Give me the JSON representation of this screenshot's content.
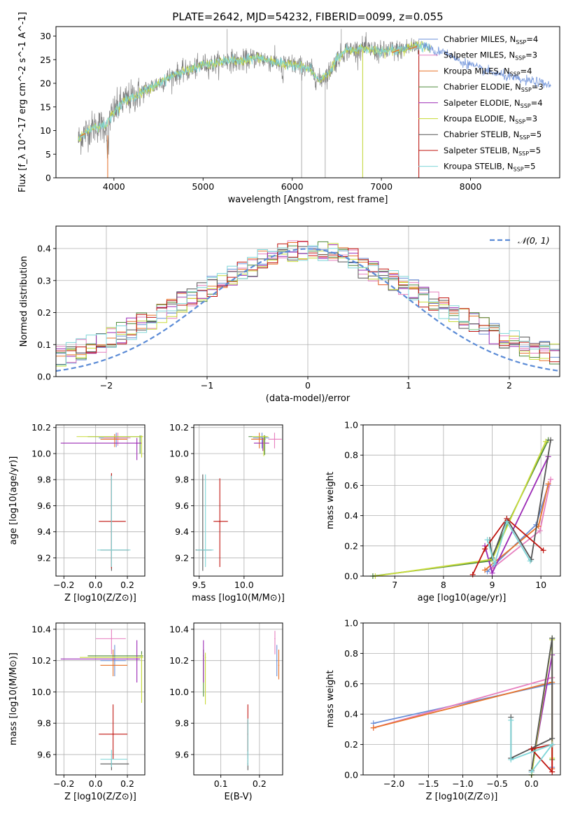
{
  "figure_title": "PLATE=2642, MJD=54232, FIBERID=0099, z=0.055",
  "colors": [
    "#6a8fd8",
    "#e67fbf",
    "#e8732a",
    "#4f8a3c",
    "#9b29b5",
    "#c9dc3a",
    "#555555",
    "#c0140f",
    "#7fd6d8"
  ],
  "chart_data": [
    {
      "id": "spectrum",
      "type": "line",
      "title": "PLATE=2642, MJD=54232, FIBERID=0099, z=0.055",
      "xlabel": "wavelength [Angstrom, rest frame]",
      "ylabel": "Flux [f_λ 10^-17 erg cm^-2 s^-1 A^-1]",
      "xlim": [
        3350,
        9000
      ],
      "ylim": [
        0,
        32
      ],
      "xticks": [
        4000,
        5000,
        6000,
        7000,
        8000
      ],
      "yticks": [
        0,
        5,
        10,
        15,
        20,
        25,
        30
      ],
      "grid": false,
      "legend_position": "upper-right",
      "legend": [
        {
          "model": "Chabrier MILES",
          "nssp": "4"
        },
        {
          "model": "Salpeter MILES",
          "nssp": "3"
        },
        {
          "model": "Kroupa MILES",
          "nssp": "4"
        },
        {
          "model": "Chabrier ELODIE",
          "nssp": "3"
        },
        {
          "model": "Salpeter ELODIE",
          "nssp": "4"
        },
        {
          "model": "Kroupa ELODIE",
          "nssp": "3"
        },
        {
          "model": "Chabrier STELIB",
          "nssp": "5"
        },
        {
          "model": "Salpeter STELIB",
          "nssp": "5"
        },
        {
          "model": "Kroupa STELIB",
          "nssp": "5"
        }
      ],
      "data_continuum": {
        "x": [
          3600,
          3700,
          3800,
          3900,
          4000,
          4100,
          4200,
          4300,
          4400,
          4500,
          4600,
          4700,
          4800,
          4900,
          5000,
          5100,
          5200,
          5300,
          5400,
          5500,
          5600,
          5700,
          5800,
          5900,
          6000,
          6100,
          6200,
          6300,
          6400,
          6500,
          6600,
          6700,
          6800,
          6900,
          7000,
          7100,
          7200,
          7300,
          7400,
          7500,
          7600,
          7700,
          7800,
          7900,
          8000,
          8100,
          8200,
          8300,
          8400,
          8500,
          8600,
          8700,
          8800,
          8900,
          9000
        ],
        "y": [
          8,
          10,
          11,
          11,
          14,
          16,
          17,
          18,
          19,
          20,
          21,
          22,
          22.5,
          23,
          24,
          24,
          24.5,
          25,
          24.5,
          25,
          25.5,
          25,
          24.5,
          24,
          24,
          23.5,
          23,
          20.5,
          22,
          25,
          27,
          27,
          27.5,
          27,
          26.5,
          27,
          27,
          27.5,
          28,
          28,
          26.5,
          27,
          25.5,
          24.5,
          24,
          23,
          22.5,
          22,
          21.5,
          21,
          20.5,
          20.5,
          20,
          19.5,
          19
        ]
      }
    },
    {
      "id": "residual_histogram",
      "type": "histogram",
      "xlabel": "(data-model)/error",
      "ylabel": "Normed distribution",
      "xlim": [
        -2.5,
        2.5
      ],
      "ylim": [
        0,
        0.47
      ],
      "xticks": [
        -2,
        -1,
        0,
        1,
        2
      ],
      "yticks": [
        0.0,
        0.1,
        0.2,
        0.3,
        0.4
      ],
      "grid": true,
      "legend_position": "upper-right",
      "legend_label": "𝒩(0, 1)",
      "bin_width": 0.1
    },
    {
      "id": "age_vs_Z",
      "type": "scatter",
      "xlabel": "Z [log10(Z/Z⊙)]",
      "ylabel": "age [log10(age/yr)]",
      "xlim": [
        -0.25,
        0.31
      ],
      "ylim": [
        9.06,
        10.22
      ],
      "xticks": [
        -0.2,
        0.0,
        0.2
      ],
      "yticks": [
        9.2,
        9.4,
        9.6,
        9.8,
        10.0,
        10.2
      ],
      "grid": true,
      "points": [
        {
          "s": 0,
          "x": 0.13,
          "y": 10.12,
          "xlo": 0.02,
          "xhi": 0.2,
          "ylo": 10.05,
          "yhi": 10.16
        },
        {
          "s": 1,
          "x": 0.14,
          "y": 10.12,
          "xlo": 0.05,
          "xhi": 0.22,
          "ylo": 10.06,
          "yhi": 10.16
        },
        {
          "s": 2,
          "x": 0.12,
          "y": 10.11,
          "xlo": 0.03,
          "xhi": 0.2,
          "ylo": 10.05,
          "yhi": 10.15
        },
        {
          "s": 3,
          "x": 0.28,
          "y": 10.13,
          "xlo": -0.05,
          "xhi": 0.29,
          "ylo": 10.0,
          "yhi": 10.14
        },
        {
          "s": 4,
          "x": 0.26,
          "y": 10.08,
          "xlo": -0.22,
          "xhi": 0.29,
          "ylo": 9.95,
          "yhi": 10.12
        },
        {
          "s": 5,
          "x": 0.29,
          "y": 10.13,
          "xlo": -0.12,
          "xhi": 0.3,
          "ylo": 9.97,
          "yhi": 10.14
        },
        {
          "s": 6,
          "x": 0.1,
          "y": 9.26,
          "xlo": 0.03,
          "xhi": 0.21,
          "ylo": 9.1,
          "yhi": 9.84
        },
        {
          "s": 7,
          "x": 0.1,
          "y": 9.48,
          "xlo": 0.02,
          "xhi": 0.19,
          "ylo": 9.12,
          "yhi": 9.85
        },
        {
          "s": 8,
          "x": 0.1,
          "y": 9.26,
          "xlo": 0.01,
          "xhi": 0.22,
          "ylo": 9.13,
          "yhi": 9.83
        }
      ]
    },
    {
      "id": "age_vs_mass",
      "type": "scatter",
      "xlabel": "mass [log10(M/M⊙)]",
      "ylabel": "",
      "xlim": [
        9.44,
        10.43
      ],
      "ylim": [
        9.06,
        10.22
      ],
      "xticks": [
        9.5,
        10.0
      ],
      "yticks": [
        9.2,
        9.4,
        9.6,
        9.8,
        10.0,
        10.2
      ],
      "grid": true,
      "points": [
        {
          "s": 0,
          "x": 10.2,
          "y": 10.12,
          "xlo": 10.1,
          "xhi": 10.28,
          "ylo": 10.04,
          "yhi": 10.16
        },
        {
          "s": 1,
          "x": 10.34,
          "y": 10.11,
          "xlo": 10.27,
          "xhi": 10.42,
          "ylo": 10.04,
          "yhi": 10.16
        },
        {
          "s": 2,
          "x": 10.17,
          "y": 10.11,
          "xlo": 10.08,
          "xhi": 10.24,
          "ylo": 10.04,
          "yhi": 10.16
        },
        {
          "s": 3,
          "x": 10.23,
          "y": 10.13,
          "xlo": 10.05,
          "xhi": 10.26,
          "ylo": 9.99,
          "yhi": 10.14
        },
        {
          "s": 4,
          "x": 10.21,
          "y": 10.08,
          "xlo": 10.11,
          "xhi": 10.28,
          "ylo": 10.02,
          "yhi": 10.12
        },
        {
          "s": 5,
          "x": 10.22,
          "y": 10.13,
          "xlo": 10.09,
          "xhi": 10.27,
          "ylo": 9.98,
          "yhi": 10.14
        },
        {
          "s": 6,
          "x": 9.54,
          "y": 9.26,
          "xlo": 9.46,
          "xhi": 9.64,
          "ylo": 9.1,
          "yhi": 9.84
        },
        {
          "s": 7,
          "x": 9.73,
          "y": 9.48,
          "xlo": 9.66,
          "xhi": 9.82,
          "ylo": 9.13,
          "yhi": 9.81
        },
        {
          "s": 8,
          "x": 9.57,
          "y": 9.26,
          "xlo": 9.47,
          "xhi": 9.66,
          "ylo": 9.13,
          "yhi": 9.84
        }
      ]
    },
    {
      "id": "weight_vs_age",
      "type": "line",
      "xlabel": "age [log10(age/yr)]",
      "ylabel": "mass weight",
      "xlim": [
        6.35,
        10.4
      ],
      "ylim": [
        0,
        1.0
      ],
      "xticks": [
        7,
        8,
        9,
        10
      ],
      "yticks": [
        0.0,
        0.2,
        0.4,
        0.6,
        0.8,
        1.0
      ],
      "grid": true,
      "series": [
        {
          "s": 0,
          "points": [
            [
              8.9,
              0.03
            ],
            [
              9.9,
              0.34
            ],
            [
              10.15,
              0.6
            ]
          ]
        },
        {
          "s": 1,
          "points": [
            [
              9.0,
              0.05
            ],
            [
              9.98,
              0.3
            ],
            [
              10.2,
              0.64
            ]
          ]
        },
        {
          "s": 2,
          "points": [
            [
              8.85,
              0.04
            ],
            [
              9.95,
              0.33
            ],
            [
              10.15,
              0.61
            ]
          ]
        },
        {
          "s": 3,
          "points": [
            [
              6.55,
              0.0
            ],
            [
              8.95,
              0.1
            ],
            [
              10.15,
              0.9
            ]
          ]
        },
        {
          "s": 4,
          "points": [
            [
              8.85,
              0.2
            ],
            [
              9.0,
              0.02
            ],
            [
              10.15,
              0.79
            ]
          ]
        },
        {
          "s": 5,
          "points": [
            [
              6.6,
              0.0
            ],
            [
              9.0,
              0.11
            ],
            [
              10.1,
              0.89
            ]
          ]
        },
        {
          "s": 6,
          "points": [
            [
              8.95,
              0.24
            ],
            [
              9.0,
              0.12
            ],
            [
              9.3,
              0.38
            ],
            [
              9.8,
              0.11
            ],
            [
              10.2,
              0.9
            ]
          ]
        },
        {
          "s": 7,
          "points": [
            [
              8.6,
              0.01
            ],
            [
              8.85,
              0.18
            ],
            [
              9.3,
              0.38
            ],
            [
              10.05,
              0.17
            ]
          ]
        },
        {
          "s": 8,
          "points": [
            [
              8.9,
              0.24
            ],
            [
              9.05,
              0.08
            ],
            [
              9.3,
              0.36
            ],
            [
              9.78,
              0.1
            ]
          ]
        }
      ]
    },
    {
      "id": "mass_vs_Z",
      "type": "scatter",
      "xlabel": "Z [log10(Z/Z⊙)]",
      "ylabel": "mass [log10(M/M⊙)]",
      "xlim": [
        -0.25,
        0.31
      ],
      "ylim": [
        9.47,
        10.44
      ],
      "xticks": [
        -0.2,
        0.0,
        0.2
      ],
      "yticks": [
        9.6,
        9.8,
        10.0,
        10.2,
        10.4
      ],
      "grid": true,
      "points": [
        {
          "s": 0,
          "x": 0.12,
          "y": 10.2,
          "xlo": 0.03,
          "xhi": 0.19,
          "ylo": 10.1,
          "yhi": 10.3
        },
        {
          "s": 1,
          "x": 0.1,
          "y": 10.34,
          "xlo": 0.0,
          "xhi": 0.19,
          "ylo": 10.24,
          "yhi": 10.4
        },
        {
          "s": 2,
          "x": 0.11,
          "y": 10.17,
          "xlo": 0.03,
          "xhi": 0.2,
          "ylo": 10.1,
          "yhi": 10.27
        },
        {
          "s": 3,
          "x": 0.29,
          "y": 10.23,
          "xlo": -0.05,
          "xhi": 0.3,
          "ylo": 10.0,
          "yhi": 10.26
        },
        {
          "s": 4,
          "x": 0.26,
          "y": 10.21,
          "xlo": -0.22,
          "xhi": 0.28,
          "ylo": 10.06,
          "yhi": 10.33
        },
        {
          "s": 5,
          "x": 0.29,
          "y": 10.22,
          "xlo": -0.1,
          "xhi": 0.3,
          "ylo": 9.93,
          "yhi": 10.24
        },
        {
          "s": 6,
          "x": 0.1,
          "y": 9.54,
          "xlo": 0.03,
          "xhi": 0.21,
          "ylo": 9.5,
          "yhi": 9.57
        },
        {
          "s": 7,
          "x": 0.11,
          "y": 9.73,
          "xlo": 0.02,
          "xhi": 0.2,
          "ylo": 9.57,
          "yhi": 9.92
        },
        {
          "s": 8,
          "x": 0.1,
          "y": 9.57,
          "xlo": 0.03,
          "xhi": 0.2,
          "ylo": 9.52,
          "yhi": 9.63
        }
      ]
    },
    {
      "id": "mass_vs_EBV",
      "type": "scatter",
      "xlabel": "E(B-V)",
      "ylabel": "",
      "xlim": [
        0.03,
        0.26
      ],
      "ylim": [
        9.47,
        10.44
      ],
      "xticks": [
        0.1,
        0.2
      ],
      "yticks": [
        9.6,
        9.8,
        10.0,
        10.2,
        10.4
      ],
      "grid": true,
      "points": [
        {
          "s": 0,
          "x": 0.245,
          "y": 10.2,
          "ylo": 10.1,
          "yhi": 10.3
        },
        {
          "s": 1,
          "x": 0.24,
          "y": 10.34,
          "ylo": 10.24,
          "yhi": 10.39
        },
        {
          "s": 2,
          "x": 0.25,
          "y": 10.17,
          "ylo": 10.08,
          "yhi": 10.27
        },
        {
          "s": 3,
          "x": 0.055,
          "y": 10.23,
          "ylo": 9.97,
          "yhi": 10.27
        },
        {
          "s": 4,
          "x": 0.055,
          "y": 10.21,
          "ylo": 10.06,
          "yhi": 10.33
        },
        {
          "s": 5,
          "x": 0.06,
          "y": 10.22,
          "ylo": 9.92,
          "yhi": 10.25
        },
        {
          "s": 6,
          "x": 0.17,
          "y": 9.54,
          "ylo": 9.5,
          "yhi": 9.82
        },
        {
          "s": 7,
          "x": 0.17,
          "y": 9.73,
          "ylo": 9.62,
          "yhi": 9.92
        },
        {
          "s": 8,
          "x": 0.17,
          "y": 9.57,
          "ylo": 9.53,
          "yhi": 9.83
        }
      ]
    },
    {
      "id": "weight_vs_Z",
      "type": "line",
      "xlabel": "Z [log10(Z/Z⊙)]",
      "ylabel": "mass weight",
      "xlim": [
        -2.45,
        0.42
      ],
      "ylim": [
        0,
        1.0
      ],
      "xticks": [
        -2.0,
        -1.5,
        -1.0,
        -0.5,
        0.0
      ],
      "yticks": [
        0.0,
        0.2,
        0.4,
        0.6,
        0.8,
        1.0
      ],
      "grid": true,
      "series": [
        {
          "s": 0,
          "points": [
            [
              -2.3,
              0.34
            ],
            [
              0.3,
              0.6
            ],
            [
              0.3,
              0.05
            ]
          ]
        },
        {
          "s": 1,
          "points": [
            [
              -2.3,
              0.31
            ],
            [
              0.3,
              0.64
            ],
            [
              0.3,
              0.04
            ]
          ]
        },
        {
          "s": 2,
          "points": [
            [
              -2.3,
              0.31
            ],
            [
              0.3,
              0.61
            ],
            [
              0.3,
              0.04
            ]
          ]
        },
        {
          "s": 3,
          "points": [
            [
              0.0,
              0.0
            ],
            [
              0.3,
              0.9
            ],
            [
              0.3,
              0.1
            ]
          ]
        },
        {
          "s": 4,
          "points": [
            [
              0.0,
              0.02
            ],
            [
              0.3,
              0.79
            ],
            [
              0.3,
              0.2
            ]
          ]
        },
        {
          "s": 5,
          "points": [
            [
              0.0,
              0.0
            ],
            [
              0.3,
              0.89
            ],
            [
              0.3,
              0.11
            ]
          ]
        },
        {
          "s": 6,
          "points": [
            [
              -0.3,
              0.38
            ],
            [
              -0.3,
              0.11
            ],
            [
              0.3,
              0.24
            ],
            [
              0.3,
              0.9
            ],
            [
              0.0,
              0.03
            ]
          ]
        },
        {
          "s": 7,
          "points": [
            [
              0.0,
              0.17
            ],
            [
              0.3,
              0.2
            ],
            [
              0.3,
              0.02
            ],
            [
              0.0,
              0.17
            ]
          ]
        },
        {
          "s": 8,
          "points": [
            [
              -0.3,
              0.36
            ],
            [
              -0.3,
              0.1
            ],
            [
              0.3,
              0.2
            ],
            [
              0.0,
              0.02
            ]
          ]
        }
      ]
    }
  ]
}
